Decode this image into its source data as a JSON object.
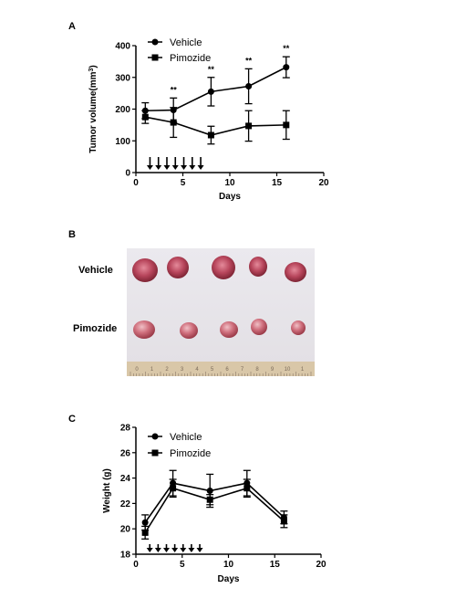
{
  "panels": {
    "a": "A",
    "b": "B",
    "c": "C"
  },
  "chart_data": [
    {
      "type": "line",
      "xlabel": "Days",
      "ylabel": "Tumor volume(mm",
      "ylabel_sup": "3",
      "ylabel_close": ")",
      "xlim": [
        0,
        20
      ],
      "ylim": [
        0,
        400
      ],
      "xticks": [
        "0",
        "5",
        "10",
        "15",
        "20"
      ],
      "yticks": [
        "0",
        "100",
        "200",
        "300",
        "400"
      ],
      "legend": "top-left",
      "grid": false,
      "series": [
        {
          "name": "Vehicle",
          "marker": "circle",
          "x": [
            1,
            4,
            8,
            12,
            16
          ],
          "y": [
            195,
            197,
            255,
            272,
            332
          ],
          "err": [
            25,
            38,
            45,
            55,
            33
          ]
        },
        {
          "name": "Pimozide",
          "marker": "square",
          "x": [
            1,
            4,
            8,
            12,
            16
          ],
          "y": [
            175,
            158,
            118,
            147,
            150
          ],
          "err": [
            20,
            47,
            28,
            48,
            45
          ]
        }
      ],
      "significance": [
        {
          "x": 4,
          "label": "**"
        },
        {
          "x": 8,
          "label": "**"
        },
        {
          "x": 12,
          "label": "**"
        },
        {
          "x": 16,
          "label": "**"
        }
      ],
      "dosing_days": [
        1.5,
        2.4,
        3.3,
        4.2,
        5.1,
        6.0,
        6.9
      ]
    },
    {
      "type": "line",
      "xlabel": "Days",
      "ylabel": "Weight (g)",
      "xlim": [
        0,
        20
      ],
      "ylim": [
        18,
        28
      ],
      "xticks": [
        "0",
        "5",
        "10",
        "15",
        "20"
      ],
      "yticks": [
        "18",
        "20",
        "22",
        "24",
        "26",
        "28"
      ],
      "legend": "top-left",
      "grid": false,
      "series": [
        {
          "name": "Vehicle",
          "marker": "circle",
          "x": [
            1,
            4,
            8,
            12,
            16
          ],
          "y": [
            20.5,
            23.6,
            23.0,
            23.6,
            20.9
          ],
          "err": [
            0.6,
            1.0,
            1.3,
            1.0,
            0.5
          ]
        },
        {
          "name": "Pimozide",
          "marker": "square",
          "x": [
            1,
            4,
            8,
            12,
            16
          ],
          "y": [
            19.7,
            23.2,
            22.3,
            23.2,
            20.6
          ],
          "err": [
            0.5,
            0.7,
            0.4,
            0.7,
            0.5
          ]
        }
      ],
      "dosing_days": [
        1.5,
        2.4,
        3.3,
        4.2,
        5.1,
        6.0,
        6.9
      ]
    }
  ],
  "photo": {
    "row_labels": [
      "Vehicle",
      "Pimozide"
    ],
    "ruler_numbers": [
      "0",
      "1",
      "2",
      "3",
      "4",
      "5",
      "6",
      "7",
      "8",
      "9",
      "10",
      "1"
    ]
  }
}
